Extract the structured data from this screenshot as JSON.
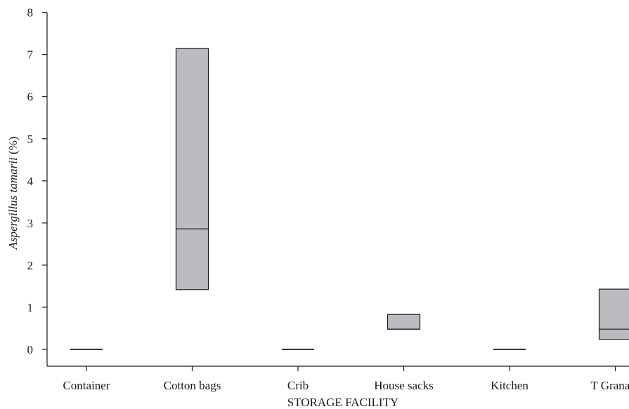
{
  "chart_data": {
    "type": "box",
    "xlabel": "STORAGE FACILITY",
    "ylabel": {
      "italic": "Aspergillus tamarii",
      "unit": " (%)"
    },
    "ylim": [
      0,
      8
    ],
    "yticks": [
      0,
      1,
      2,
      3,
      4,
      5,
      6,
      7,
      8
    ],
    "categories": [
      "Container",
      "Cotton bags",
      "Crib",
      "House sacks",
      "Kitchen",
      "T Granary"
    ],
    "boxes": [
      {
        "category": "Container",
        "q1": 0,
        "median": 0,
        "q3": 0
      },
      {
        "category": "Cotton bags",
        "q1": 1.42,
        "median": 2.86,
        "q3": 7.14
      },
      {
        "category": "Crib",
        "q1": 0,
        "median": 0,
        "q3": 0
      },
      {
        "category": "House sacks",
        "q1": 0.48,
        "median": 0.48,
        "q3": 0.83
      },
      {
        "category": "Kitchen",
        "q1": 0,
        "median": 0,
        "q3": 0
      },
      {
        "category": "T Granary",
        "q1": 0.24,
        "median": 0.48,
        "q3": 1.43
      }
    ],
    "box_fill": "#bbbcc0",
    "box_stroke": "#1a1a1a",
    "grid": false,
    "legend": "none"
  }
}
